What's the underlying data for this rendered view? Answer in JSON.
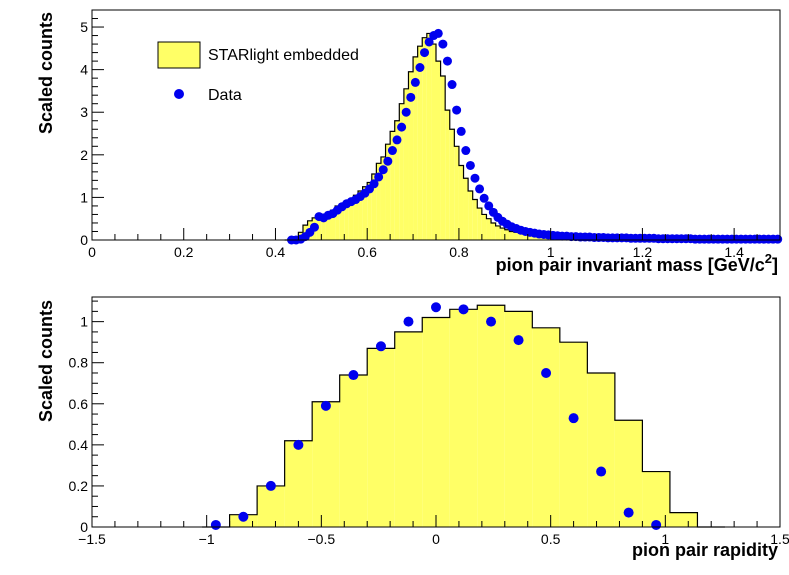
{
  "chart_data": [
    {
      "type": "histogram",
      "xlabel": "pion pair invariant mass [GeV/c",
      "xlabel_sup": "2",
      "xlabel_close": "]",
      "ylabel": "Scaled counts",
      "xlim": [
        0,
        1.5
      ],
      "ylim": [
        0,
        5.4
      ],
      "xticks": [
        0,
        0.2,
        0.4,
        0.6,
        0.8,
        1,
        1.2,
        1.4
      ],
      "xtick_labels": [
        "0",
        "0.2",
        "0.4",
        "0.6",
        "0.8",
        "1",
        "1.2",
        "1.4"
      ],
      "yticks": [
        0,
        1,
        2,
        3,
        4,
        5
      ],
      "ytick_labels": [
        "0",
        "1",
        "2",
        "3",
        "4",
        "5"
      ],
      "legend": {
        "position": "top-left",
        "entries": [
          {
            "label": "STARlight embedded",
            "kind": "fill"
          },
          {
            "label": "Data",
            "kind": "marker"
          }
        ]
      },
      "series": [
        {
          "name": "STARlight embedded",
          "kind": "hist",
          "fill": "#ffff66",
          "line": "#000000",
          "bin_width": 0.01,
          "bin_start": 0.42,
          "values": [
            0.0,
            0.02,
            0.08,
            0.18,
            0.35,
            0.45,
            0.52,
            0.5,
            0.6,
            0.65,
            0.7,
            0.8,
            0.85,
            0.9,
            0.95,
            1.05,
            1.15,
            1.25,
            1.35,
            1.55,
            1.8,
            1.95,
            2.25,
            2.55,
            2.8,
            3.2,
            3.55,
            3.95,
            4.3,
            4.55,
            4.75,
            4.85,
            4.6,
            4.2,
            3.85,
            3.05,
            2.6,
            2.2,
            1.75,
            1.45,
            1.15,
            0.95,
            0.75,
            0.6,
            0.5,
            0.4,
            0.33,
            0.28,
            0.24,
            0.2,
            0.18,
            0.16,
            0.15,
            0.14,
            0.13,
            0.12,
            0.11,
            0.1,
            0.09,
            0.09,
            0.08,
            0.08,
            0.07,
            0.07,
            0.07,
            0.06,
            0.06,
            0.06,
            0.05,
            0.05,
            0.05,
            0.05,
            0.04,
            0.04,
            0.04,
            0.04,
            0.04,
            0.03,
            0.03,
            0.03
          ]
        },
        {
          "name": "Data",
          "kind": "points",
          "color": "#0000ee",
          "x": [
            0.435,
            0.445,
            0.455,
            0.465,
            0.475,
            0.485,
            0.495,
            0.505,
            0.515,
            0.525,
            0.535,
            0.545,
            0.555,
            0.565,
            0.575,
            0.585,
            0.595,
            0.605,
            0.615,
            0.625,
            0.635,
            0.645,
            0.655,
            0.665,
            0.675,
            0.685,
            0.695,
            0.705,
            0.715,
            0.725,
            0.735,
            0.745,
            0.755,
            0.765,
            0.775,
            0.785,
            0.795,
            0.805,
            0.815,
            0.825,
            0.835,
            0.845,
            0.855,
            0.865,
            0.875,
            0.885,
            0.895,
            0.905,
            0.915,
            0.925,
            0.935,
            0.945,
            0.955,
            0.965,
            0.975,
            0.985,
            0.995,
            1.005,
            1.015,
            1.025,
            1.035,
            1.045,
            1.055,
            1.065,
            1.075,
            1.085,
            1.095,
            1.105,
            1.115,
            1.125,
            1.135,
            1.145,
            1.155,
            1.165,
            1.175,
            1.185,
            1.195,
            1.205,
            1.215,
            1.225,
            1.235,
            1.245,
            1.255,
            1.265,
            1.275,
            1.285,
            1.295,
            1.305,
            1.315,
            1.325,
            1.335,
            1.345,
            1.355,
            1.365,
            1.375,
            1.385,
            1.395,
            1.405,
            1.415,
            1.425,
            1.435,
            1.445,
            1.455,
            1.465,
            1.475,
            1.485,
            1.495
          ],
          "y": [
            0.0,
            0.0,
            0.02,
            0.08,
            0.18,
            0.3,
            0.55,
            0.52,
            0.58,
            0.62,
            0.7,
            0.78,
            0.85,
            0.9,
            0.95,
            1.02,
            1.1,
            1.2,
            1.32,
            1.48,
            1.65,
            1.85,
            2.1,
            2.35,
            2.65,
            3.0,
            3.35,
            3.7,
            4.05,
            4.4,
            4.65,
            4.8,
            4.85,
            4.6,
            4.2,
            3.65,
            3.05,
            2.55,
            2.1,
            1.75,
            1.45,
            1.2,
            0.98,
            0.8,
            0.65,
            0.53,
            0.44,
            0.37,
            0.31,
            0.27,
            0.23,
            0.2,
            0.18,
            0.16,
            0.14,
            0.13,
            0.12,
            0.11,
            0.1,
            0.09,
            0.09,
            0.08,
            0.08,
            0.07,
            0.07,
            0.07,
            0.06,
            0.06,
            0.06,
            0.05,
            0.05,
            0.05,
            0.05,
            0.05,
            0.04,
            0.04,
            0.04,
            0.04,
            0.04,
            0.04,
            0.03,
            0.03,
            0.03,
            0.03,
            0.03,
            0.03,
            0.03,
            0.03,
            0.02,
            0.02,
            0.02,
            0.02,
            0.02,
            0.02,
            0.02,
            0.02,
            0.02,
            0.02,
            0.02,
            0.02,
            0.02,
            0.02,
            0.02,
            0.02,
            0.02,
            0.02,
            0.02
          ]
        }
      ]
    },
    {
      "type": "histogram",
      "xlabel": "pion pair rapidity",
      "ylabel": "Scaled counts",
      "xlim": [
        -1.5,
        1.5
      ],
      "ylim": [
        0,
        1.12
      ],
      "xticks": [
        -1.5,
        -1,
        -0.5,
        0,
        0.5,
        1,
        1.5
      ],
      "xtick_labels": [
        "−1.5",
        "−1",
        "−0.5",
        "0",
        "0.5",
        "1",
        "1.5"
      ],
      "yticks": [
        0,
        0.2,
        0.4,
        0.6,
        0.8,
        1
      ],
      "ytick_labels": [
        "0",
        "0.2",
        "0.4",
        "0.6",
        "0.8",
        "1"
      ],
      "series": [
        {
          "name": "STARlight embedded",
          "kind": "hist",
          "fill": "#ffff66",
          "line": "#000000",
          "bin_width": 0.12,
          "bin_start": -1.02,
          "values": [
            0.0,
            0.06,
            0.2,
            0.42,
            0.61,
            0.74,
            0.87,
            0.95,
            1.02,
            1.06,
            1.08,
            1.05,
            0.97,
            0.9,
            0.75,
            0.52,
            0.27,
            0.07,
            0.0
          ]
        },
        {
          "name": "Data",
          "kind": "points",
          "color": "#0000ee",
          "x": [
            -0.96,
            -0.84,
            -0.72,
            -0.6,
            -0.48,
            -0.36,
            -0.24,
            -0.12,
            0.0,
            0.12,
            0.24,
            0.36,
            0.48,
            0.6,
            0.72,
            0.84,
            0.96
          ],
          "y": [
            0.01,
            0.05,
            0.2,
            0.4,
            0.59,
            0.74,
            0.88,
            1.0,
            1.07,
            1.06,
            1.0,
            0.91,
            0.75,
            0.53,
            0.27,
            0.07,
            0.01
          ]
        }
      ]
    }
  ]
}
